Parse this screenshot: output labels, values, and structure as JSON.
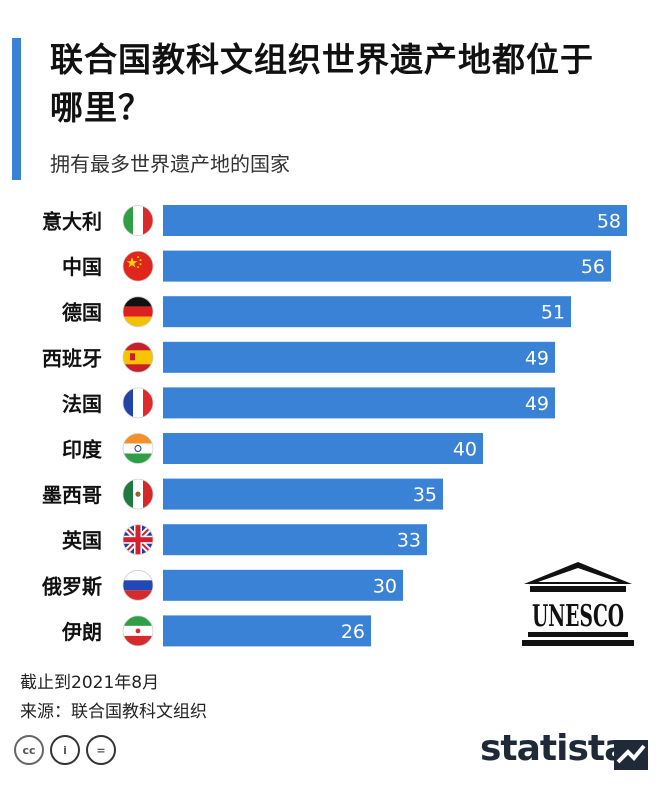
{
  "title": "联合国教科文组织世界遗产地都位于哪里？",
  "subtitle": "拥有最多世界遗产地的国家",
  "chart_data": {
    "type": "bar",
    "orientation": "horizontal",
    "categories": [
      "意大利",
      "中国",
      "德国",
      "西班牙",
      "法国",
      "印度",
      "墨西哥",
      "英国",
      "俄罗斯",
      "伊朗"
    ],
    "values": [
      58,
      56,
      51,
      49,
      49,
      40,
      35,
      33,
      30,
      26
    ],
    "flags": [
      "italy",
      "china",
      "germany",
      "spain",
      "france",
      "india",
      "mexico",
      "uk",
      "russia",
      "iran"
    ],
    "xlim": [
      0,
      58
    ],
    "bar_color": "#3a82d6",
    "grid": false
  },
  "footnote_date": "截止到2021年8月",
  "footnote_source": "来源：联合国教科文组织",
  "logo": "statista",
  "unesco_logo_text": "UNESCO",
  "license_icons": [
    "cc-icon",
    "by-icon",
    "nd-icon"
  ],
  "license_icon_text": [
    "cc",
    "i",
    "="
  ]
}
